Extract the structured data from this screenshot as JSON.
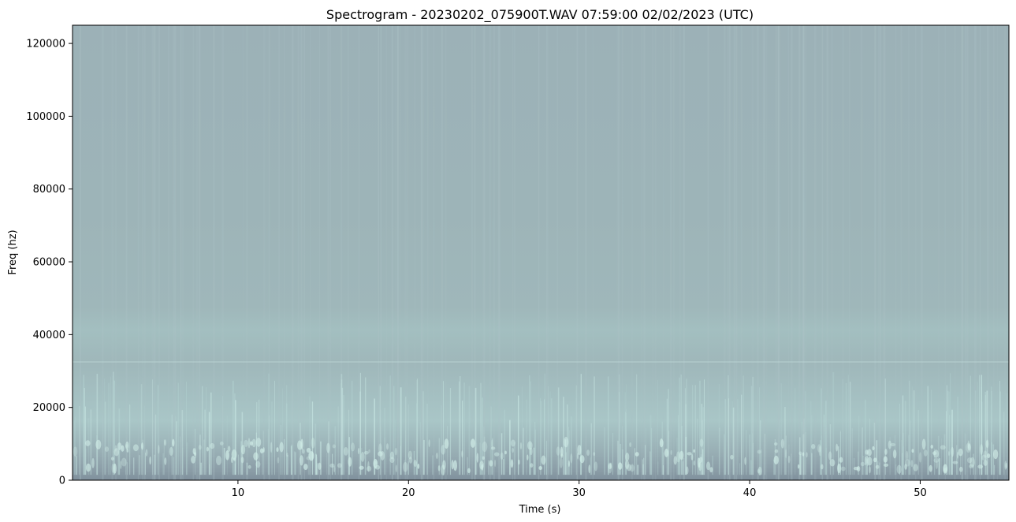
{
  "chart_data": {
    "type": "heatmap",
    "title": "Spectrogram - 20230202_075900T.WAV 07:59:00 02/02/2023 (UTC)",
    "xlabel": "Time (s)",
    "ylabel": "Freq (hz)",
    "xlim": [
      0.3,
      55.2
    ],
    "ylim": [
      0,
      125000
    ],
    "x_ticks": [
      10,
      20,
      30,
      40,
      50
    ],
    "x_tick_labels": [
      "10",
      "20",
      "30",
      "40",
      "50"
    ],
    "y_ticks": [
      0,
      20000,
      40000,
      60000,
      80000,
      100000,
      120000
    ],
    "y_tick_labels": [
      "0",
      "20000",
      "40000",
      "60000",
      "80000",
      "100000",
      "120000"
    ],
    "grid": false,
    "colors": {
      "background": "#9fb2b8",
      "low_band": "#7f909c",
      "mid_band": "#a9c6c7",
      "highlight": "#c9e8e4"
    },
    "features": {
      "constant_tone_hz": 32500,
      "bright_band_hz": [
        14000,
        26000
      ],
      "diffuse_band_hz": [
        36000,
        45000
      ],
      "dark_floor_hz": [
        0,
        2500
      ]
    }
  }
}
